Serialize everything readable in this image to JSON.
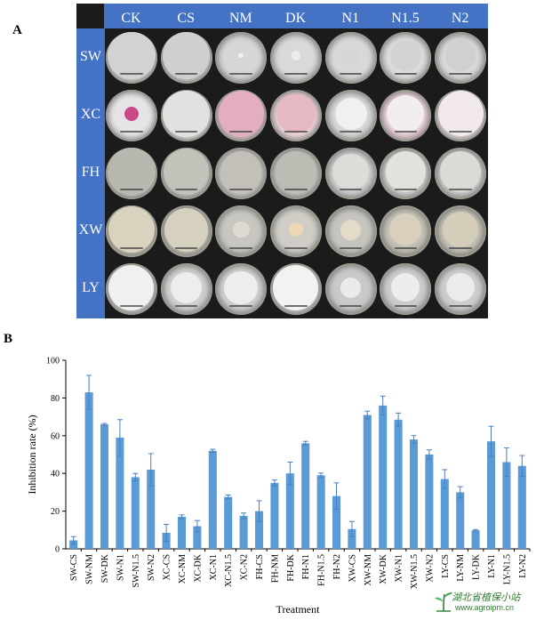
{
  "panel_a": {
    "label": "A",
    "columns": [
      "CK",
      "CS",
      "NM",
      "DK",
      "N1",
      "N1.5",
      "N2"
    ],
    "rows": [
      "SW",
      "XC",
      "FH",
      "XW",
      "LY"
    ],
    "dishes": [
      [
        {
          "bg": "#dedede",
          "colony": "#d2d2d2",
          "size": 0.92
        },
        {
          "bg": "#d9d9d9",
          "colony": "#cfcfcf",
          "size": 0.92
        },
        {
          "bg": "#d6d6d6",
          "colony": "#f4f2e8",
          "size": 0.1
        },
        {
          "bg": "#d9d9d9",
          "colony": "#ececec",
          "size": 0.18
        },
        {
          "bg": "#d8d8d8",
          "colony": "#d6d6d6",
          "size": 0.4
        },
        {
          "bg": "#dcdcdc",
          "colony": "#d3d3d3",
          "size": 0.6
        },
        {
          "bg": "#d8d8d8",
          "colony": "#d0d0d0",
          "size": 0.6
        }
      ],
      [
        {
          "bg": "#e6e4e6",
          "colony": "#c94a86",
          "size": 0.28
        },
        {
          "bg": "#e9e9e9",
          "colony": "#e1e1e1",
          "size": 0.9
        },
        {
          "bg": "#eacdd6",
          "colony": "#e3aebf",
          "size": 0.88
        },
        {
          "bg": "#ecd9dd",
          "colony": "#e6b8c2",
          "size": 0.75
        },
        {
          "bg": "#d6d6d6",
          "colony": "#f0f0f0",
          "size": 0.62
        },
        {
          "bg": "#ead3da",
          "colony": "#f2eef0",
          "size": 0.72
        },
        {
          "bg": "#e9dde0",
          "colony": "#f0e8ea",
          "size": 0.88
        }
      ],
      [
        {
          "bg": "#c9c9c4",
          "colony": "#b9b8b0",
          "size": 0.92
        },
        {
          "bg": "#cdcdc8",
          "colony": "#c2c1ba",
          "size": 0.88
        },
        {
          "bg": "#cfcdc8",
          "colony": "#c2c0b8",
          "size": 0.78
        },
        {
          "bg": "#c9c9c4",
          "colony": "#bcbbb4",
          "size": 0.78
        },
        {
          "bg": "#cfcfcf",
          "colony": "#dcdcd9",
          "size": 0.7
        },
        {
          "bg": "#cfcfcf",
          "colony": "#e2e2dc",
          "size": 0.78
        },
        {
          "bg": "#cfcfcf",
          "colony": "#dadad6",
          "size": 0.8
        }
      ],
      [
        {
          "bg": "#c9c6bc",
          "colony": "#d8d2bf",
          "size": 0.9
        },
        {
          "bg": "#c7c4ba",
          "colony": "#d6d1bf",
          "size": 0.85
        },
        {
          "bg": "#c8c6c0",
          "colony": "#dedad0",
          "size": 0.32
        },
        {
          "bg": "#cfcdc6",
          "colony": "#ecd8b6",
          "size": 0.28
        },
        {
          "bg": "#c6c4be",
          "colony": "#e4dac8",
          "size": 0.4
        },
        {
          "bg": "#c3c0b6",
          "colony": "#d8d0bc",
          "size": 0.62
        },
        {
          "bg": "#c3c0b6",
          "colony": "#d4cdba",
          "size": 0.7
        }
      ],
      [
        {
          "bg": "#d2d2d2",
          "colony": "#f0f0f0",
          "size": 0.88
        },
        {
          "bg": "#cfcfcf",
          "colony": "#ededed",
          "size": 0.6
        },
        {
          "bg": "#d0d0d0",
          "colony": "#eeeeee",
          "size": 0.65
        },
        {
          "bg": "#d4d4d4",
          "colony": "#f2f2f2",
          "size": 0.88
        },
        {
          "bg": "#c9c9c9",
          "colony": "#eaeaea",
          "size": 0.4
        },
        {
          "bg": "#cccccc",
          "colony": "#ececec",
          "size": 0.55
        },
        {
          "bg": "#cdcdcd",
          "colony": "#ebebeb",
          "size": 0.55
        }
      ]
    ]
  },
  "panel_b": {
    "label": "B"
  },
  "chart_data": {
    "type": "bar",
    "title": "",
    "xlabel": "Treatment",
    "ylabel": "Inhibition rate  (%)",
    "ylim": [
      0,
      100
    ],
    "yticks": [
      0,
      20,
      40,
      60,
      80,
      100
    ],
    "grid": false,
    "bar_color": "#5b9bd5",
    "categories": [
      "SW-CS",
      "SW-NM",
      "SW-DK",
      "SW-N1",
      "SW-N1.5",
      "SW-N2",
      "XC-CS",
      "XC-NM",
      "XC-DK",
      "XC-N1",
      "XC-N1.5",
      "XC-N2",
      "FH-CS",
      "FH-NM",
      "FH-DK",
      "FH-N1",
      "FH-N1.5",
      "FH-N2",
      "XW-CS",
      "XW-NM",
      "XW-DK",
      "XW-N1",
      "XW-N1.5",
      "XW-N2",
      "LY-CS",
      "LY-NM",
      "LY-DK",
      "LY-N1",
      "LY-N1.5",
      "LY-N2"
    ],
    "values": [
      4.5,
      83,
      66,
      59,
      38,
      42,
      8.5,
      17,
      12,
      52,
      27.5,
      17.5,
      20,
      35,
      40,
      56,
      39,
      28,
      10.5,
      71,
      76,
      68.5,
      58,
      50,
      37,
      30,
      9.8,
      57,
      46,
      44
    ],
    "errors": [
      2,
      9,
      0.5,
      9.5,
      2,
      8.5,
      4.5,
      1,
      3,
      0.8,
      1,
      1.5,
      5.5,
      1.5,
      6,
      1,
      1.2,
      7,
      4,
      2,
      5,
      3.5,
      2,
      2.5,
      5,
      3,
      0.4,
      8,
      7.5,
      5.5
    ]
  },
  "watermark": {
    "title": "湖北省植保小站",
    "url": "www.agroipm.cn"
  }
}
